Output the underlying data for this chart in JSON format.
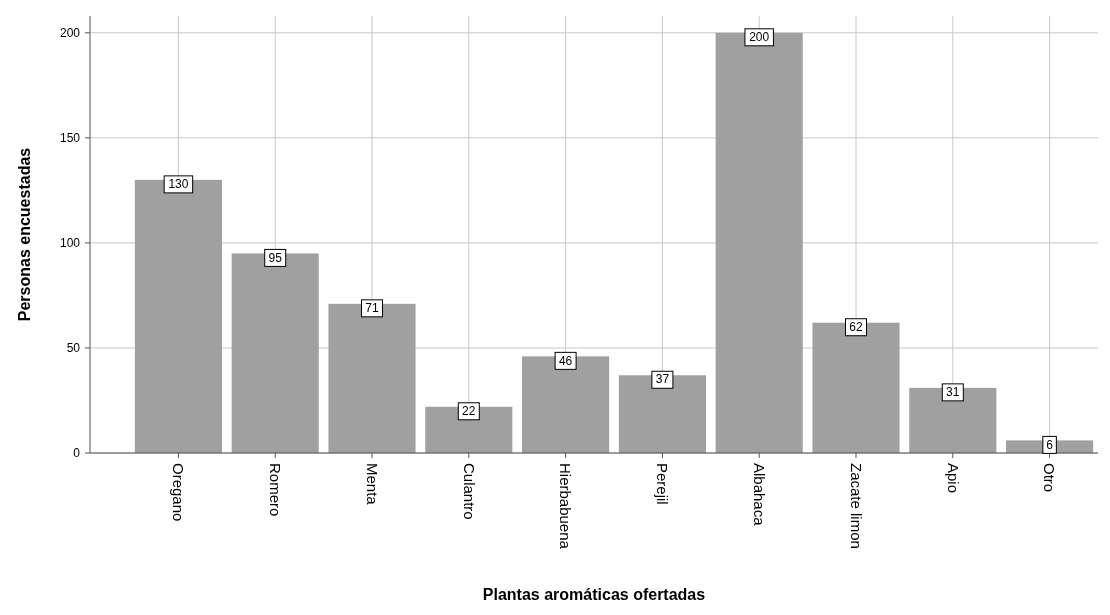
{
  "chart_data": {
    "type": "bar",
    "xlabel": "Plantas aromáticas ofertadas",
    "ylabel": "Personas encuestadas",
    "categories": [
      "Oregano",
      "Romero",
      "Menta",
      "Culantro",
      "Hierbabuena",
      "Perejil",
      "Albahaca",
      "Zacate limon",
      "Apio",
      "Otro"
    ],
    "values": [
      130,
      95,
      71,
      22,
      46,
      37,
      200,
      62,
      31,
      6
    ],
    "color": "#a0a0a0",
    "ylim": [
      0,
      208
    ],
    "yticks": [
      0,
      50,
      100,
      150,
      200
    ],
    "grid": true,
    "data_labels": true
  }
}
